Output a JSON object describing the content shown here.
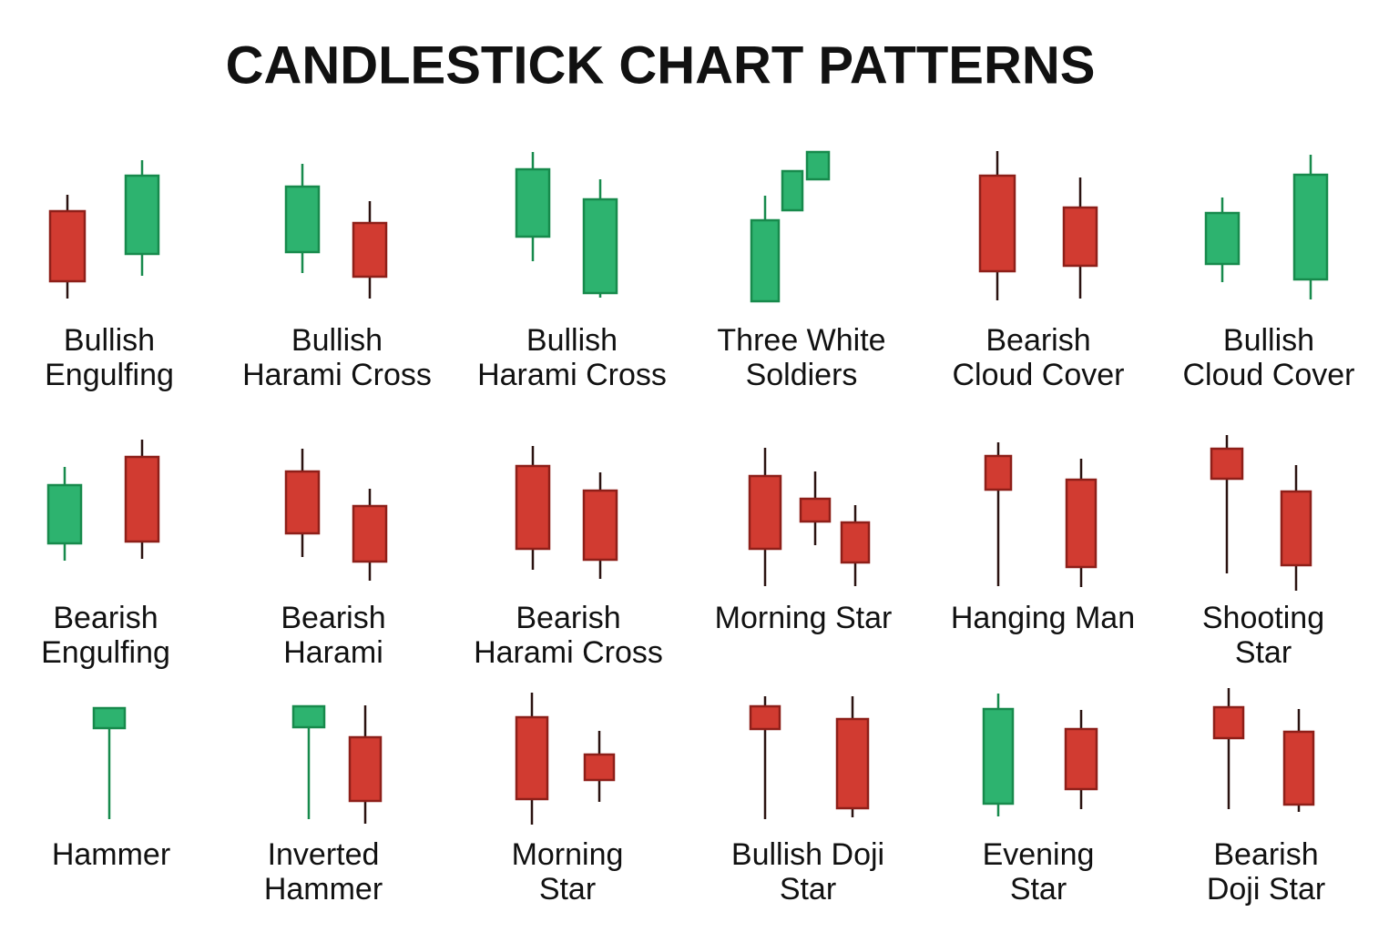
{
  "title": "CANDLESTICK CHART PATTERNS",
  "patterns": [
    {
      "label": [
        "Bullish",
        "Engulfing"
      ]
    },
    {
      "label": [
        "Bullish",
        "Harami Cross"
      ]
    },
    {
      "label": [
        "Bullish",
        "Harami Cross"
      ]
    },
    {
      "label": [
        "Three White",
        "Soldiers"
      ]
    },
    {
      "label": [
        "Bearish",
        "Cloud Cover"
      ]
    },
    {
      "label": [
        "Bullish",
        "Cloud Cover"
      ]
    },
    {
      "label": [
        "Bearish",
        "Engulfing"
      ]
    },
    {
      "label": [
        "Bearish",
        "Harami"
      ]
    },
    {
      "label": [
        "Bearish",
        "Harami Cross"
      ]
    },
    {
      "label": [
        "Morning Star"
      ]
    },
    {
      "label": [
        "Hanging Man"
      ]
    },
    {
      "label": [
        "Shooting",
        "Star"
      ]
    },
    {
      "label": [
        "Hammer"
      ]
    },
    {
      "label": [
        "Inverted",
        "Hammer"
      ]
    },
    {
      "label": [
        "Morning",
        "Star"
      ]
    },
    {
      "label": [
        "Bullish Doji",
        "Star"
      ]
    },
    {
      "label": [
        "Evening",
        "Star"
      ]
    },
    {
      "label": [
        "Bearish",
        "Doji Star"
      ]
    }
  ]
}
